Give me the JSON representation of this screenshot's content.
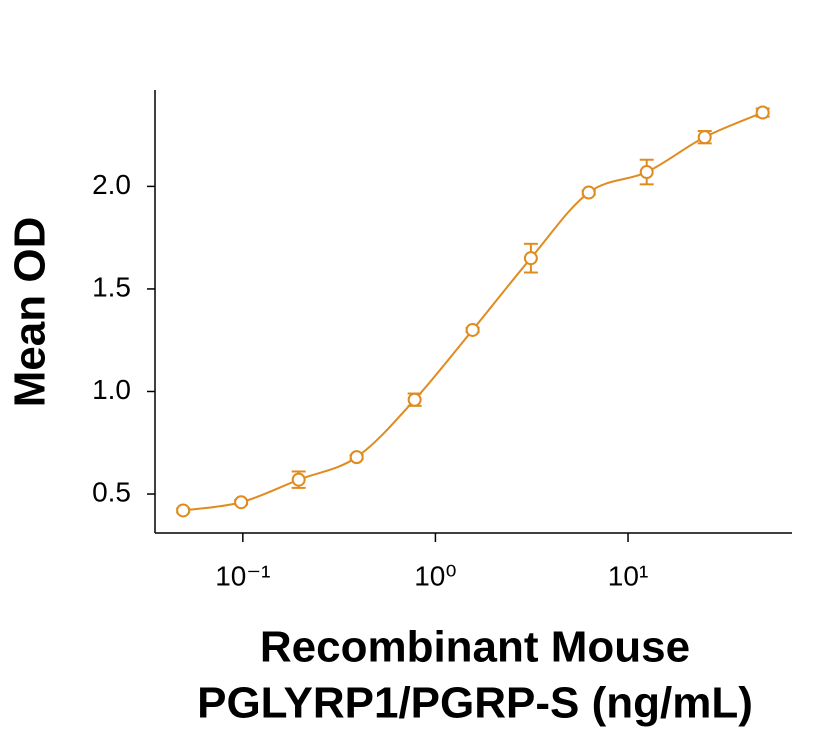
{
  "chart_data": {
    "type": "scatter",
    "y_label": "Mean OD",
    "x_label": [
      "Recombinant Mouse",
      "PGLYRP1/PGRP-S (ng/mL)"
    ],
    "log_x": true,
    "x": [
      0.049,
      0.098,
      0.195,
      0.39,
      0.78,
      1.56,
      3.13,
      6.25,
      12.5,
      25,
      50
    ],
    "series": [
      {
        "color": "#e08b1f",
        "values": [
          0.42,
          0.46,
          0.57,
          0.68,
          0.96,
          1.3,
          1.65,
          1.97,
          2.07,
          2.24,
          2.36
        ],
        "errors": [
          0.01,
          0.01,
          0.04,
          0.01,
          0.03,
          0.01,
          0.07,
          0.01,
          0.06,
          0.03,
          0.02
        ]
      }
    ],
    "xlim": [
      0.035,
      71
    ],
    "xticks": [
      {
        "value": 0.1,
        "label": "10⁻¹"
      },
      {
        "value": 1,
        "label": "10⁰"
      },
      {
        "value": 10,
        "label": "10¹"
      }
    ],
    "ylim": [
      0.31,
      2.47
    ],
    "yticks": [
      {
        "value": 0.5,
        "label": "0.5"
      },
      {
        "value": 1.0,
        "label": "1.0"
      },
      {
        "value": 1.5,
        "label": "1.5"
      },
      {
        "value": 2.0,
        "label": "2.0"
      }
    ],
    "curve": true
  }
}
